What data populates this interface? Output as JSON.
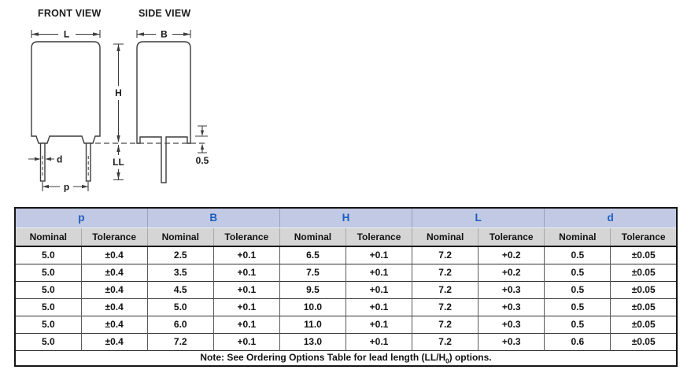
{
  "diagram": {
    "front_view_label": "FRONT VIEW",
    "side_view_label": "SIDE VIEW",
    "dims": {
      "L": "L",
      "B": "B",
      "H": "H",
      "LL": "LL",
      "d": "d",
      "p": "p",
      "standoff": "0.5"
    }
  },
  "table": {
    "groups": [
      "p",
      "B",
      "H",
      "L",
      "d"
    ],
    "sub_headers": [
      "Nominal",
      "Tolerance"
    ],
    "rows": [
      [
        "5.0",
        "±0.4",
        "2.5",
        "+0.1",
        "6.5",
        "+0.1",
        "7.2",
        "+0.2",
        "0.5",
        "±0.05"
      ],
      [
        "5.0",
        "±0.4",
        "3.5",
        "+0.1",
        "7.5",
        "+0.1",
        "7.2",
        "+0.2",
        "0.5",
        "±0.05"
      ],
      [
        "5.0",
        "±0.4",
        "4.5",
        "+0.1",
        "9.5",
        "+0.1",
        "7.2",
        "+0.3",
        "0.5",
        "±0.05"
      ],
      [
        "5.0",
        "±0.4",
        "5.0",
        "+0.1",
        "10.0",
        "+0.1",
        "7.2",
        "+0.3",
        "0.5",
        "±0.05"
      ],
      [
        "5.0",
        "±0.4",
        "6.0",
        "+0.1",
        "11.0",
        "+0.1",
        "7.2",
        "+0.3",
        "0.5",
        "±0.05"
      ],
      [
        "5.0",
        "±0.4",
        "7.2",
        "+0.1",
        "13.0",
        "+0.1",
        "7.2",
        "+0.3",
        "0.6",
        "±0.05"
      ]
    ],
    "note": {
      "prefix": "Note: See Ordering Options Table for lead length (LL/H",
      "subscript": "0",
      "suffix": ") options."
    }
  },
  "colors": {
    "group_header_bg": "#c2c9e4",
    "group_header_text": "#1c5dbd",
    "sub_header_bg": "#d5d5d5",
    "table_border": "#151515",
    "drawing_line": "#3c3c3c"
  }
}
